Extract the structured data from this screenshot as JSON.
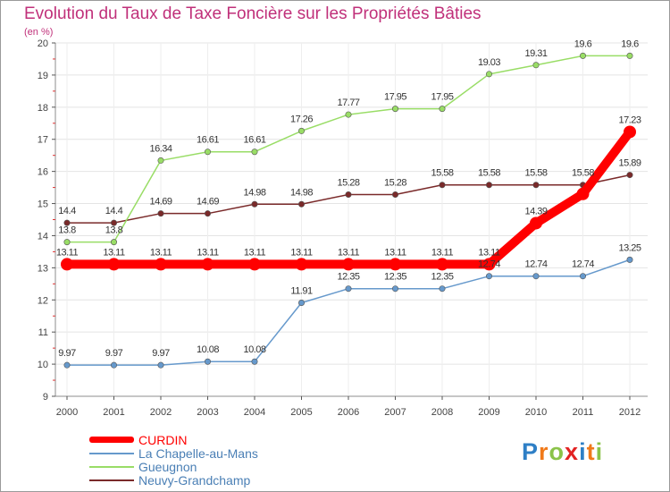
{
  "title": "Evolution du Taux de Taxe Foncière sur les Propriétés Bâties",
  "unit_label": "(en %)",
  "logo": {
    "text": "Proxiti",
    "letters": [
      "P",
      "r",
      "o",
      "x",
      "i",
      "t",
      "i"
    ],
    "colors": [
      "#2e7fc6",
      "#f07a1a",
      "#8bc34a",
      "#e22222",
      "#2e7fc6",
      "#f07a1a",
      "#8bc34a"
    ]
  },
  "chart_data": {
    "type": "line",
    "title": "Evolution du Taux de Taxe Foncière sur les Propriétés Bâties",
    "ylabel": "(en %)",
    "xlabel": "",
    "categories": [
      "2000",
      "2001",
      "2002",
      "2003",
      "2004",
      "2005",
      "2006",
      "2007",
      "2008",
      "2009",
      "2010",
      "2011",
      "2012"
    ],
    "ylim": [
      9,
      20
    ],
    "yticks": [
      9,
      10,
      11,
      12,
      13,
      14,
      15,
      16,
      17,
      18,
      19,
      20
    ],
    "legend_position": "bottom-left",
    "series": [
      {
        "name": "CURDIN",
        "color": "#ff0000",
        "width": "thick",
        "values": [
          13.11,
          13.11,
          13.11,
          13.11,
          13.11,
          13.11,
          13.11,
          13.11,
          13.11,
          13.11,
          14.39,
          15.3,
          17.23
        ],
        "labels": [
          "13.11",
          "13.11",
          "13.11",
          "13.11",
          "13.11",
          "13.11",
          "13.11",
          "13.11",
          "13.11",
          "13.11",
          "14.39",
          "",
          "17.23"
        ]
      },
      {
        "name": "La Chapelle-au-Mans",
        "color": "#6699cc",
        "width": "thin",
        "values": [
          9.97,
          9.97,
          9.97,
          10.08,
          10.08,
          11.91,
          12.35,
          12.35,
          12.35,
          12.74,
          12.74,
          12.74,
          13.25
        ],
        "labels": [
          "9.97",
          "9.97",
          "9.97",
          "10.08",
          "10.08",
          "11.91",
          "12.35",
          "12.35",
          "12.35",
          "12.74",
          "12.74",
          "12.74",
          "13.25"
        ]
      },
      {
        "name": "Gueugnon",
        "color": "#99dd66",
        "width": "thin",
        "values": [
          13.8,
          13.8,
          16.34,
          16.61,
          16.61,
          17.26,
          17.77,
          17.95,
          17.95,
          19.03,
          19.31,
          19.6,
          19.6
        ],
        "labels": [
          "13.8",
          "13.8",
          "16.34",
          "16.61",
          "16.61",
          "17.26",
          "17.77",
          "17.95",
          "17.95",
          "19.03",
          "19.31",
          "19.6",
          "19.6"
        ]
      },
      {
        "name": "Neuvy-Grandchamp",
        "color": "#7a2a2a",
        "width": "thin",
        "values": [
          14.4,
          14.4,
          14.69,
          14.69,
          14.98,
          14.98,
          15.28,
          15.28,
          15.58,
          15.58,
          15.58,
          15.58,
          15.89
        ],
        "labels": [
          "14.4",
          "14.4",
          "14.69",
          "14.69",
          "14.98",
          "14.98",
          "15.28",
          "15.28",
          "15.58",
          "15.58",
          "15.58",
          "15.58",
          "15.89"
        ]
      }
    ]
  }
}
